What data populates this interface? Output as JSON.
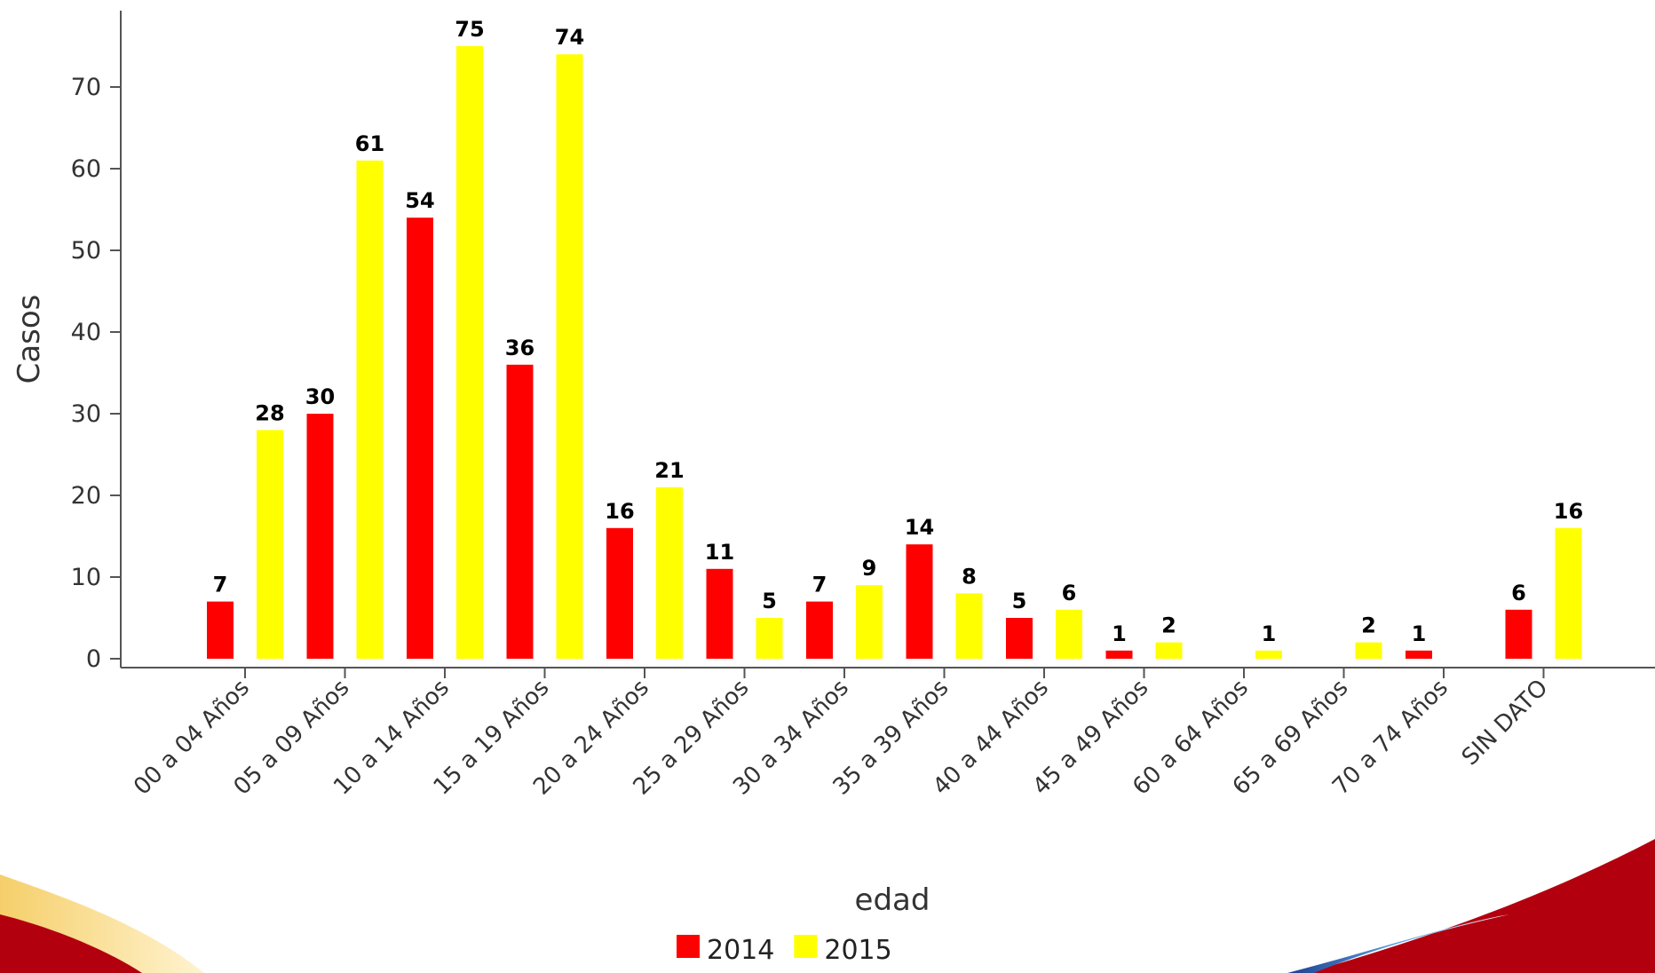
{
  "chart_data": {
    "type": "bar",
    "xlabel": "edad",
    "ylabel": "Casos",
    "ylim": [
      0,
      78
    ],
    "yticks": [
      0,
      10,
      20,
      30,
      40,
      50,
      60,
      70
    ],
    "grid": false,
    "legend_position": "bottom-center",
    "categories": [
      "00 a 04 Años",
      "05 a 09 Años",
      "10 a 14 Años",
      "15 a 19 Años",
      "20 a 24 Años",
      "25 a 29 Años",
      "30 a 34 Años",
      "35 a 39 Años",
      "40 a 44 Años",
      "45 a 49 Años",
      "60 a 64 Años",
      "65 a 69 Años",
      "70 a 74 Años",
      "SIN DATO"
    ],
    "series": [
      {
        "name": "2014",
        "color": "#ff0000",
        "values": [
          7,
          30,
          54,
          36,
          16,
          11,
          7,
          14,
          5,
          1,
          null,
          null,
          1,
          6
        ]
      },
      {
        "name": "2015",
        "color": "#ffff00",
        "values": [
          28,
          61,
          75,
          74,
          21,
          5,
          9,
          8,
          6,
          2,
          1,
          2,
          null,
          16
        ]
      }
    ]
  },
  "theme": {
    "wave_red": "#b3000f",
    "wave_gold": "#f2c14e",
    "wave_blue": "#2a4d9b"
  }
}
